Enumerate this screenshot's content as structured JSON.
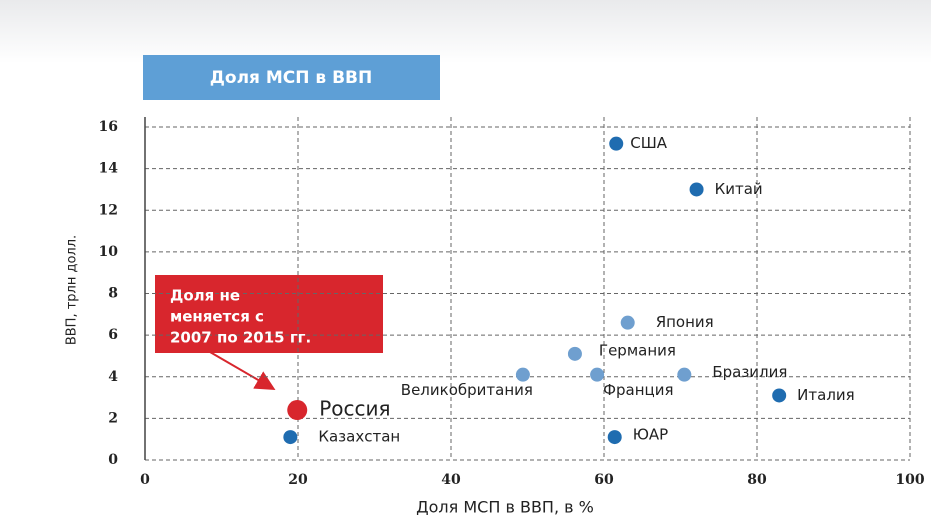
{
  "chart_data": {
    "type": "scatter",
    "title": "Доля МСП в ВВП",
    "x_label": "Доля МСП в ВВП, в %",
    "y_label": "ВВП, трлн долл.",
    "annotation": [
      "Доля не",
      "меняется с",
      "2007 по 2015 гг."
    ],
    "labels": [
      "США",
      "Китай",
      "Япония",
      "Германия",
      "Великобритания",
      "Франция",
      "Бразилия",
      "Италия",
      "Россия",
      "Казахстан",
      "ЮАР"
    ],
    "x": [
      61.6,
      72.1,
      63.1,
      56.2,
      49.4,
      59.1,
      70.5,
      82.9,
      19.9,
      19.0,
      61.4
    ],
    "y": [
      15.2,
      13.0,
      6.6,
      5.1,
      4.1,
      4.1,
      4.1,
      3.1,
      2.4,
      1.1,
      1.1
    ],
    "colors": [
      "#1f6cb0",
      "#1f6cb0",
      "#6f9fcf",
      "#6f9fcf",
      "#6f9fcf",
      "#6f9fcf",
      "#6f9fcf",
      "#1f6cb0",
      "#d8262d",
      "#1f6cb0",
      "#1f6cb0"
    ],
    "sizes": [
      7,
      7,
      7,
      7,
      7,
      7,
      7,
      7,
      10,
      7,
      7
    ],
    "xlim": [
      0,
      100
    ],
    "xticks": [
      0,
      20,
      40,
      60,
      80,
      100
    ],
    "ylim": [
      0,
      16
    ],
    "yticks": [
      0,
      2,
      4,
      6,
      8,
      10,
      12,
      14,
      16
    ],
    "grid": true
  }
}
